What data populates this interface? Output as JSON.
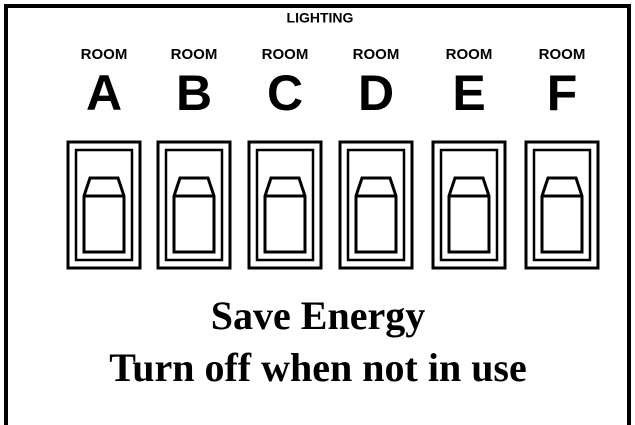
{
  "header": {
    "title": "LIGHTING"
  },
  "rooms": [
    {
      "label": "ROOM",
      "letter": "A"
    },
    {
      "label": "ROOM",
      "letter": "B"
    },
    {
      "label": "ROOM",
      "letter": "C"
    },
    {
      "label": "ROOM",
      "letter": "D"
    },
    {
      "label": "ROOM",
      "letter": "E"
    },
    {
      "label": "ROOM",
      "letter": "F"
    }
  ],
  "footer": {
    "line1": "Save Energy",
    "line2": "Turn off when not in use"
  }
}
